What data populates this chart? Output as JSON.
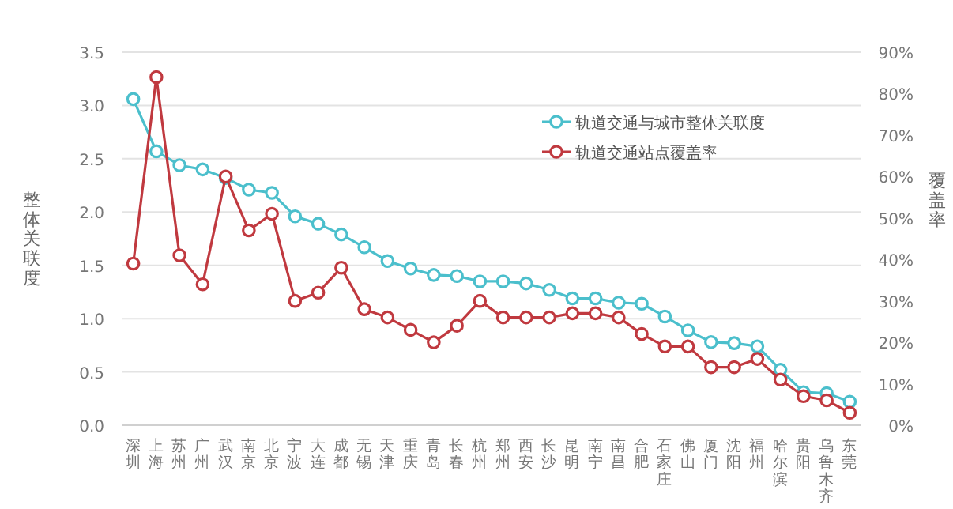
{
  "chart_data": {
    "type": "line",
    "categories": [
      "深圳",
      "上海",
      "苏州",
      "广州",
      "武汉",
      "南京",
      "北京",
      "宁波",
      "大连",
      "成都",
      "无锡",
      "天津",
      "重庆",
      "青岛",
      "长春",
      "杭州",
      "郑州",
      "西安",
      "长沙",
      "昆明",
      "南宁",
      "南昌",
      "合肥",
      "石家庄",
      "佛山",
      "厦门",
      "沈阳",
      "福州",
      "哈尔滨",
      "贵阳",
      "乌鲁木齐",
      "东莞"
    ],
    "series": [
      {
        "name": "轨道交通与城市整体关联度",
        "color": "#4bbfcc",
        "values": [
          3.06,
          2.57,
          2.44,
          2.4,
          2.32,
          2.21,
          2.18,
          1.96,
          1.89,
          1.79,
          1.67,
          1.54,
          1.47,
          1.41,
          1.4,
          1.35,
          1.35,
          1.33,
          1.27,
          1.19,
          1.19,
          1.15,
          1.14,
          1.02,
          0.89,
          0.78,
          0.77,
          0.74,
          0.52,
          0.31,
          0.3,
          0.22
        ]
      },
      {
        "name": "轨道交通站点覆盖率",
        "color": "#c0393f",
        "axis": "y2",
        "values": [
          39,
          84,
          41,
          34,
          60,
          47,
          51,
          30,
          32,
          38,
          28,
          26,
          23,
          20,
          24,
          30,
          26,
          26,
          26,
          27,
          27,
          26,
          22,
          19,
          19,
          14,
          14,
          16,
          11,
          7,
          6,
          3
        ]
      }
    ],
    "ylabel": "整体关联度",
    "y2label": "覆盖率",
    "ylim": [
      0,
      3.5
    ],
    "yticks": [
      {
        "value": 0,
        "label": "0.0"
      },
      {
        "value": 0.5,
        "label": "0.5"
      },
      {
        "value": 1,
        "label": "1.0"
      },
      {
        "value": 1.5,
        "label": "1.5"
      },
      {
        "value": 2,
        "label": "2.0"
      },
      {
        "value": 2.5,
        "label": "2.5"
      },
      {
        "value": 3,
        "label": "3.0"
      },
      {
        "value": 3.5,
        "label": "3.5"
      }
    ],
    "y2lim": [
      0,
      90
    ],
    "y2ticks": [
      {
        "value": 0,
        "label": "0%"
      },
      {
        "value": 10,
        "label": "10%"
      },
      {
        "value": 20,
        "label": "20%"
      },
      {
        "value": 30,
        "label": "30%"
      },
      {
        "value": 40,
        "label": "40%"
      },
      {
        "value": 50,
        "label": "50%"
      },
      {
        "value": 60,
        "label": "60%"
      },
      {
        "value": 70,
        "label": "70%"
      },
      {
        "value": 80,
        "label": "80%"
      },
      {
        "value": 90,
        "label": "90%"
      }
    ],
    "grid": "y",
    "legend": "top right",
    "marker": "circle",
    "line_style": "solid"
  }
}
